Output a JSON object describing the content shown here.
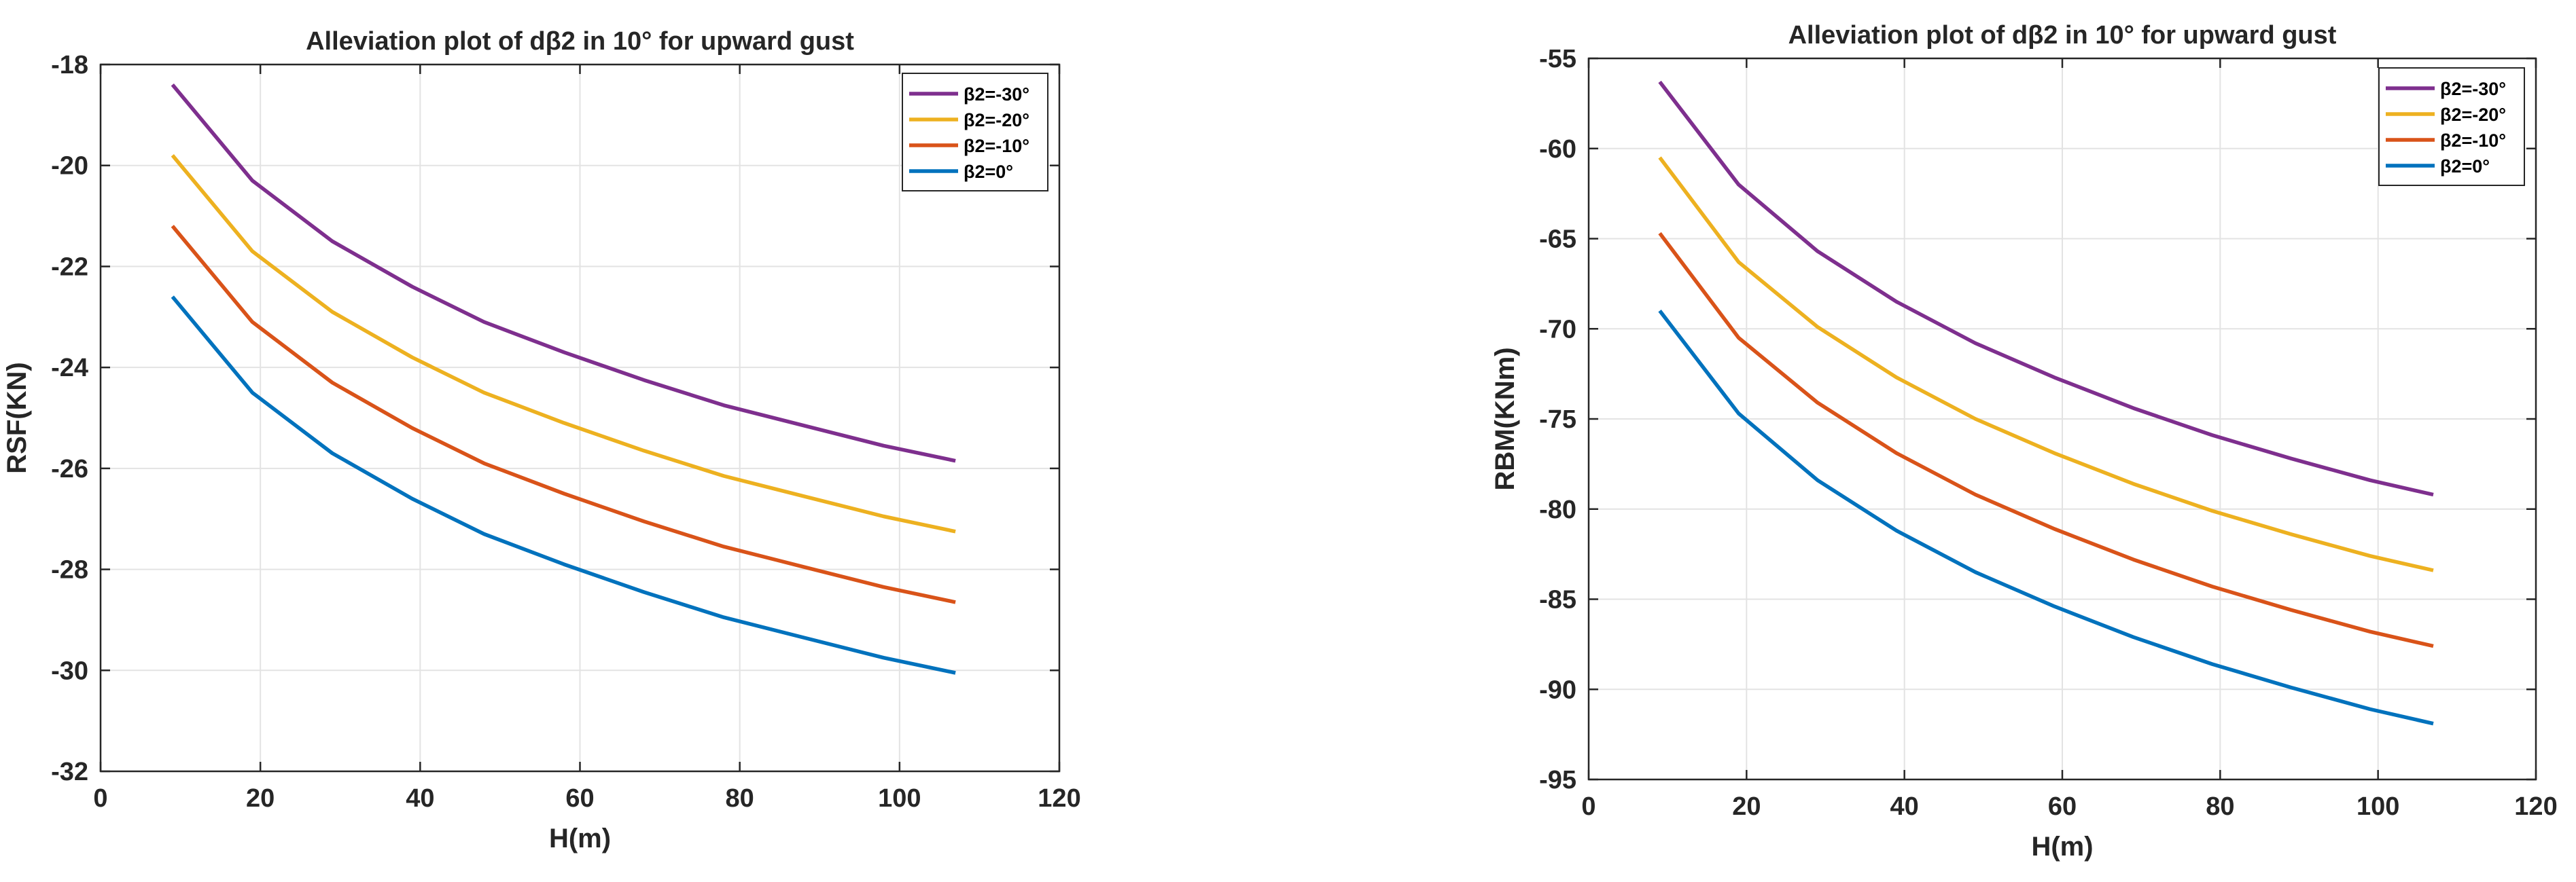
{
  "chart_data": [
    {
      "type": "line",
      "title": "Alleviation plot of dβ2 in 10° for upward gust",
      "xlabel": "H(m)",
      "ylabel": "RSF(KN)",
      "xlim": [
        0,
        120
      ],
      "ylim": [
        -32,
        -18
      ],
      "xticks": [
        0,
        20,
        40,
        60,
        80,
        100,
        120
      ],
      "yticks": [
        -32,
        -30,
        -28,
        -26,
        -24,
        -22,
        -20,
        -18
      ],
      "grid": true,
      "legend_position": "top-right",
      "x": [
        9,
        19,
        29,
        39,
        48,
        58,
        68,
        78,
        88,
        98,
        107
      ],
      "series": [
        {
          "name": "β2=-30°",
          "color": "#7E2F8E",
          "values": [
            -18.4,
            -20.3,
            -21.5,
            -22.4,
            -23.1,
            -23.7,
            -24.25,
            -24.75,
            -25.15,
            -25.55,
            -25.85
          ]
        },
        {
          "name": "β2=-20°",
          "color": "#EDB120",
          "values": [
            -19.8,
            -21.7,
            -22.9,
            -23.8,
            -24.5,
            -25.1,
            -25.65,
            -26.15,
            -26.55,
            -26.95,
            -27.25
          ]
        },
        {
          "name": "β2=-10°",
          "color": "#D95319",
          "values": [
            -21.2,
            -23.1,
            -24.3,
            -25.2,
            -25.9,
            -26.5,
            -27.05,
            -27.55,
            -27.95,
            -28.35,
            -28.65
          ]
        },
        {
          "name": "β2=0°",
          "color": "#0072BD",
          "values": [
            -22.6,
            -24.5,
            -25.7,
            -26.6,
            -27.3,
            -27.9,
            -28.45,
            -28.95,
            -29.35,
            -29.75,
            -30.05
          ]
        }
      ]
    },
    {
      "type": "line",
      "title": "Alleviation plot of dβ2 in 10° for upward gust",
      "xlabel": "H(m)",
      "ylabel": "RBM(KNm)",
      "xlim": [
        0,
        120
      ],
      "ylim": [
        -95,
        -55
      ],
      "xticks": [
        0,
        20,
        40,
        60,
        80,
        100,
        120
      ],
      "yticks": [
        -95,
        -90,
        -85,
        -80,
        -75,
        -70,
        -65,
        -60,
        -55
      ],
      "grid": true,
      "legend_position": "top-right",
      "x": [
        9,
        19,
        29,
        39,
        49,
        59,
        69,
        79,
        89,
        99,
        107
      ],
      "series": [
        {
          "name": "β2=-30°",
          "color": "#7E2F8E",
          "values": [
            -56.3,
            -62.0,
            -65.7,
            -68.5,
            -70.8,
            -72.7,
            -74.4,
            -75.9,
            -77.2,
            -78.4,
            -79.2
          ]
        },
        {
          "name": "β2=-20°",
          "color": "#EDB120",
          "values": [
            -60.5,
            -66.3,
            -69.9,
            -72.7,
            -75.0,
            -76.9,
            -78.6,
            -80.1,
            -81.4,
            -82.6,
            -83.4
          ]
        },
        {
          "name": "β2=-10°",
          "color": "#D95319",
          "values": [
            -64.7,
            -70.5,
            -74.1,
            -76.9,
            -79.2,
            -81.1,
            -82.8,
            -84.3,
            -85.6,
            -86.8,
            -87.6
          ]
        },
        {
          "name": "β2=0°",
          "color": "#0072BD",
          "values": [
            -69.0,
            -74.7,
            -78.4,
            -81.2,
            -83.5,
            -85.4,
            -87.1,
            -88.6,
            -89.9,
            -91.1,
            -91.9
          ]
        }
      ]
    }
  ]
}
